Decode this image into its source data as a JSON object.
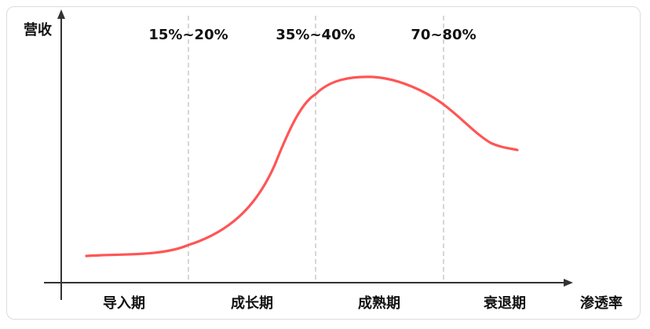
{
  "y_axis_label": "营收",
  "x_axis_label": "渗透率",
  "thresholds": [
    "15%~20%",
    "35%~40%",
    "70~80%"
  ],
  "stages": [
    "导入期",
    "成长期",
    "成熟期",
    "衰退期"
  ],
  "colors": {
    "curve": "#ff5555",
    "axis": "#333333",
    "divider": "#bfbfbf"
  }
}
